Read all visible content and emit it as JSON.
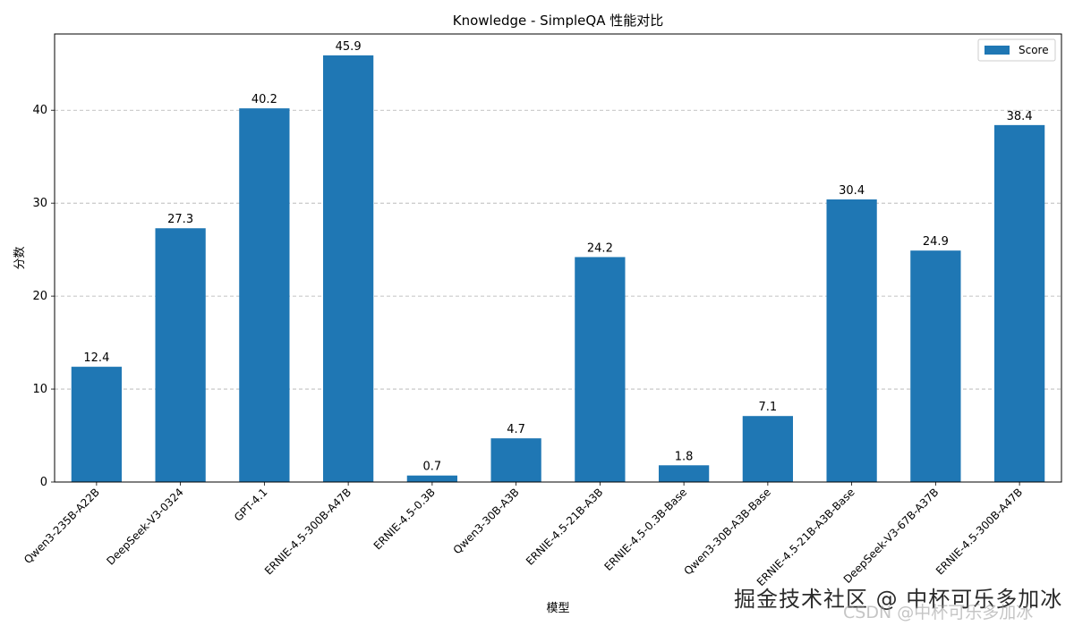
{
  "chart_data": {
    "type": "bar",
    "title": "Knowledge - SimpleQA 性能对比",
    "xlabel": "模型",
    "ylabel": "分数",
    "categories": [
      "Qwen3-235B-A22B",
      "DeepSeek-V3-0324",
      "GPT-4.1",
      "ERNIE-4.5-300B-A47B",
      "ERNIE-4.5-0.3B",
      "Qwen3-30B-A3B",
      "ERNIE-4.5-21B-A3B",
      "ERNIE-4.5-0.3B-Base",
      "Qwen3-30B-A3B-Base",
      "ERNIE-4.5-21B-A3B-Base",
      "DeepSeek-V3-67B-A37B",
      "ERNIE-4.5-300B-A47B"
    ],
    "series": [
      {
        "name": "Score",
        "values": [
          12.4,
          27.3,
          40.2,
          45.9,
          0.7,
          4.7,
          24.2,
          1.8,
          7.1,
          30.4,
          24.9,
          38.4
        ],
        "color": "#1f77b4"
      }
    ],
    "ylim": [
      0,
      48.2
    ],
    "yticks": [
      0,
      10,
      20,
      30,
      40
    ],
    "grid": "y-dashed",
    "legend_position": "upper-right"
  },
  "watermark": {
    "main": "掘金技术社区 @ 中杯可乐多加冰",
    "sub": "CSDN @中杯可乐多加冰"
  }
}
